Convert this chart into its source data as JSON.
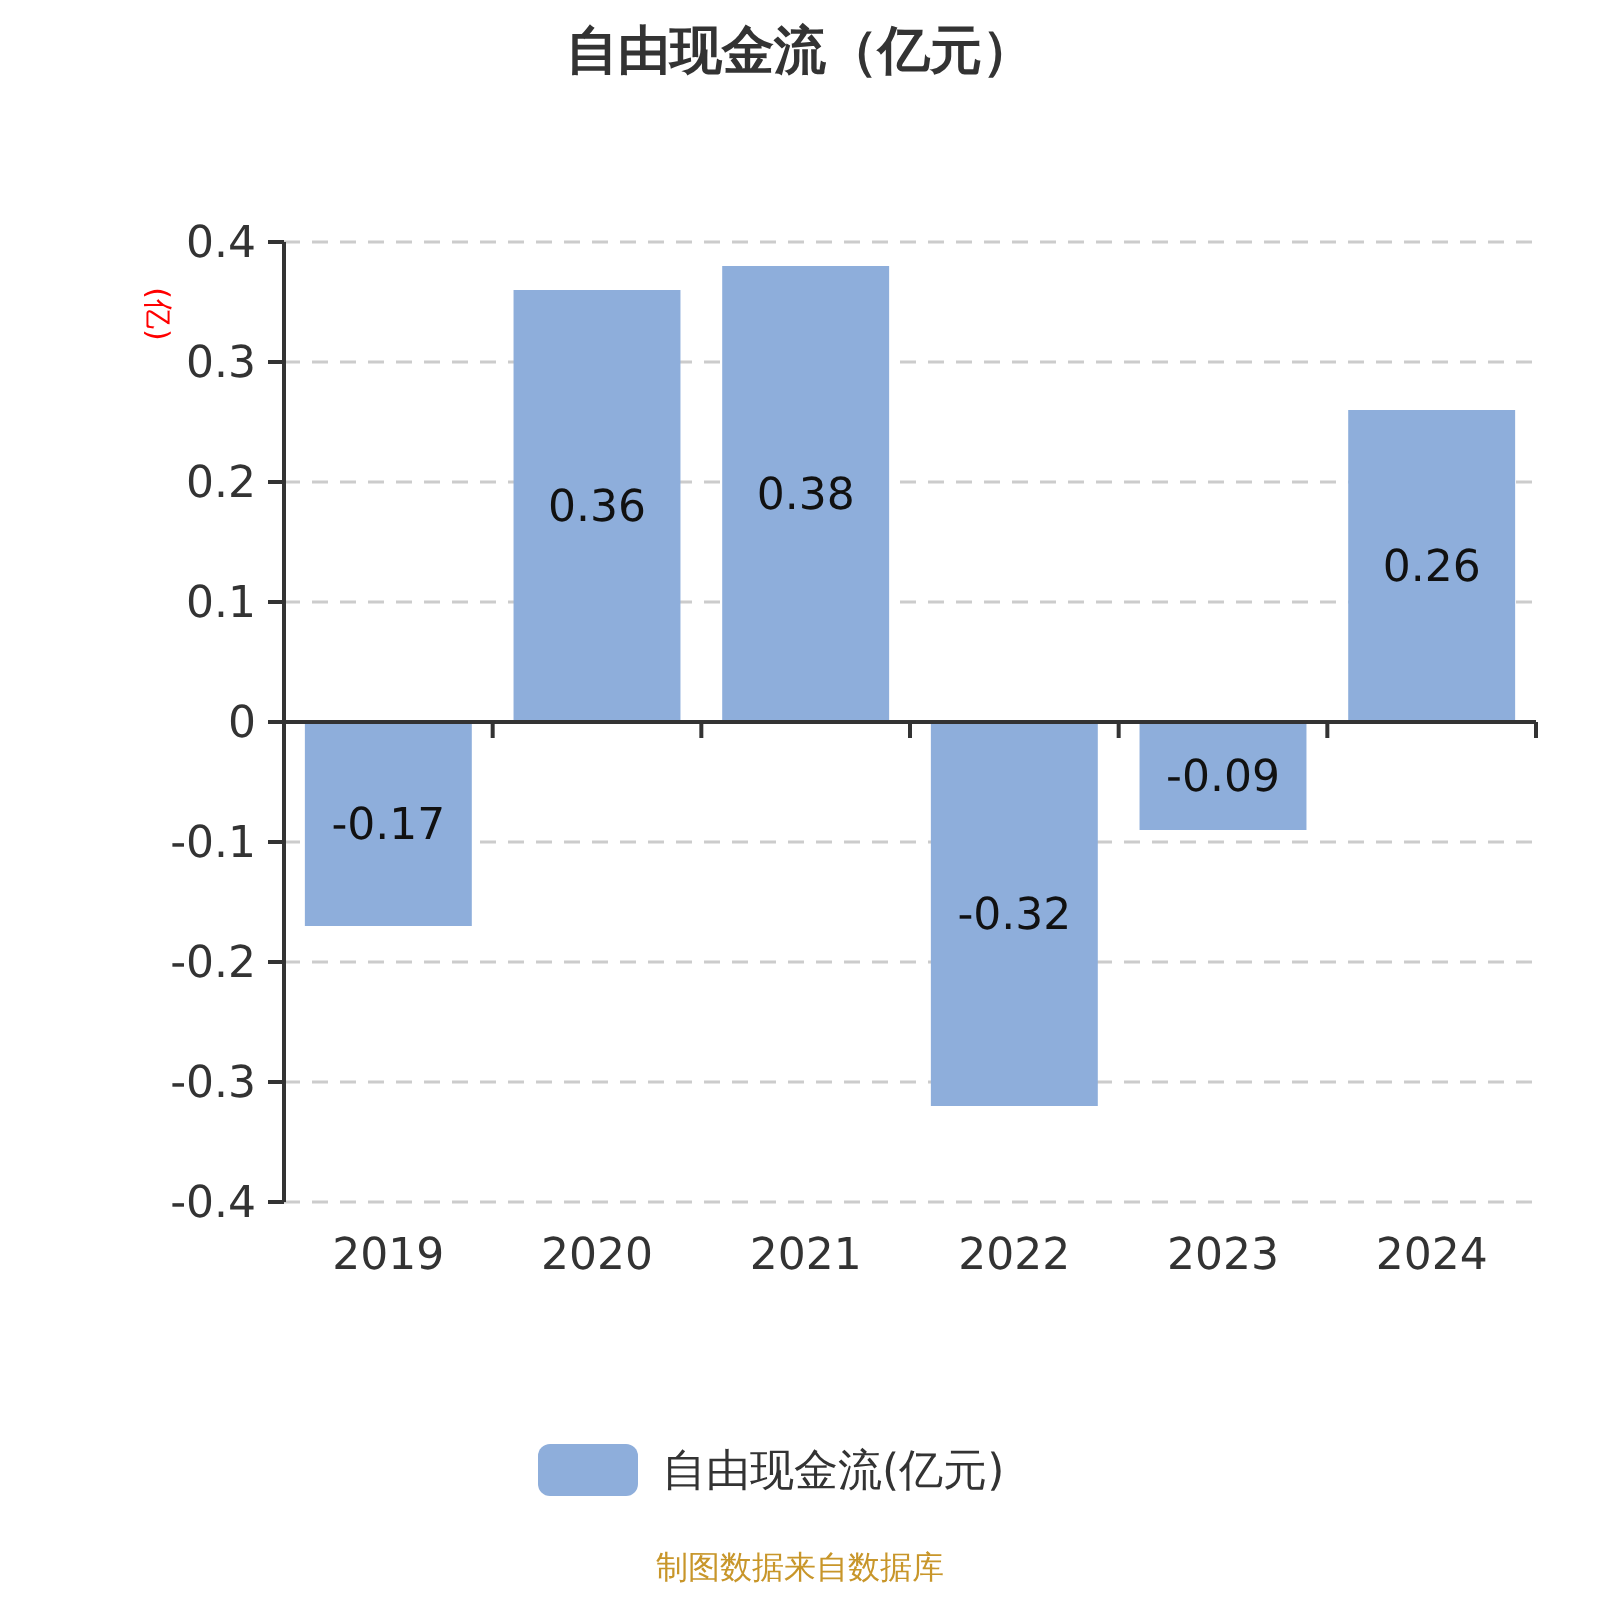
{
  "chart_data": {
    "type": "bar",
    "title": "自由现金流（亿元）",
    "ylabel": "(亿)",
    "categories": [
      "2019",
      "2020",
      "2021",
      "2022",
      "2023",
      "2024"
    ],
    "series": [
      {
        "name": "自由现金流(亿元)",
        "color": "#8eaedb",
        "values": [
          -0.17,
          0.36,
          0.38,
          -0.32,
          -0.09,
          0.26
        ]
      }
    ],
    "ylim": [
      -0.4,
      0.4
    ],
    "yticks": [
      -0.4,
      -0.3,
      -0.2,
      -0.1,
      0,
      0.1,
      0.2,
      0.3,
      0.4
    ],
    "grid": "y",
    "legend": "bottom",
    "data_labels": true,
    "annotations": [
      "制图数据来自数据库"
    ]
  }
}
